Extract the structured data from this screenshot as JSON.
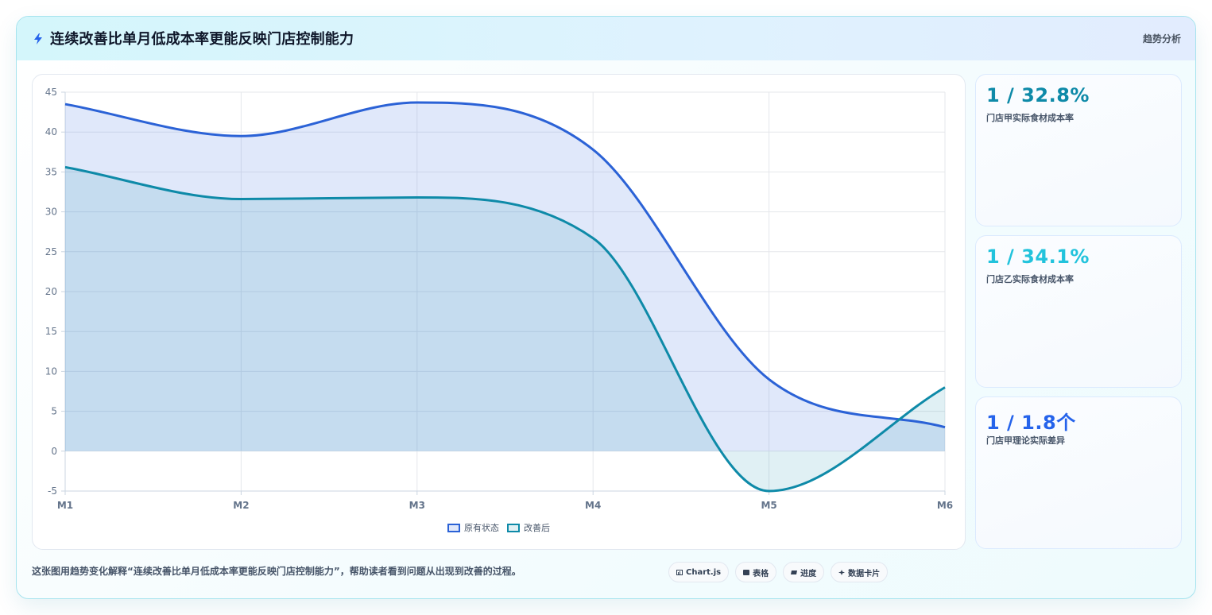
{
  "header": {
    "title": "连续改善比单月低成本率更能反映门店控制能力",
    "tag": "趋势分析",
    "accent": "#2563eb"
  },
  "chart_data": {
    "type": "area",
    "categories": [
      "M1",
      "M2",
      "M3",
      "M4",
      "M5",
      "M6"
    ],
    "series": [
      {
        "name": "原有状态",
        "values": [
          43.5,
          39.5,
          43.7,
          37.8,
          9,
          3
        ],
        "color": "#2b62d6",
        "fill": "rgba(99,140,232,0.20)"
      },
      {
        "name": "改善后",
        "values": [
          35.6,
          31.6,
          31.8,
          26.7,
          -5,
          8
        ],
        "color": "#0e8aa8",
        "fill": "rgba(14,138,168,0.13)"
      }
    ],
    "title": "",
    "xlabel": "",
    "ylabel": "",
    "ylim": [
      -5,
      45
    ],
    "yticks": [
      45,
      40,
      35,
      30,
      25,
      20,
      15,
      10,
      5,
      0,
      -5
    ],
    "grid": true,
    "legend": "bottom"
  },
  "stats": [
    {
      "value": "1 / 32.8%",
      "label": "门店甲实际食材成本率",
      "color": "#0e8aa8"
    },
    {
      "value": "1 / 34.1%",
      "label": "门店乙实际食材成本率",
      "color": "#22c3dc"
    },
    {
      "value": "1 / 1.8个",
      "label": "门店甲理论实际差异",
      "color": "#2563eb"
    }
  ],
  "footer": {
    "description": "这张图用趋势变化解释“连续改善比单月低成本率更能反映门店控制能力”，帮助读者看到问题从出现到改善的过程。",
    "chips": [
      {
        "icon": "chart-icon",
        "label": "Chart.js"
      },
      {
        "icon": "table-icon",
        "label": "表格"
      },
      {
        "icon": "progress-icon",
        "label": "进度"
      },
      {
        "icon": "card-icon",
        "label": "数据卡片"
      }
    ]
  }
}
